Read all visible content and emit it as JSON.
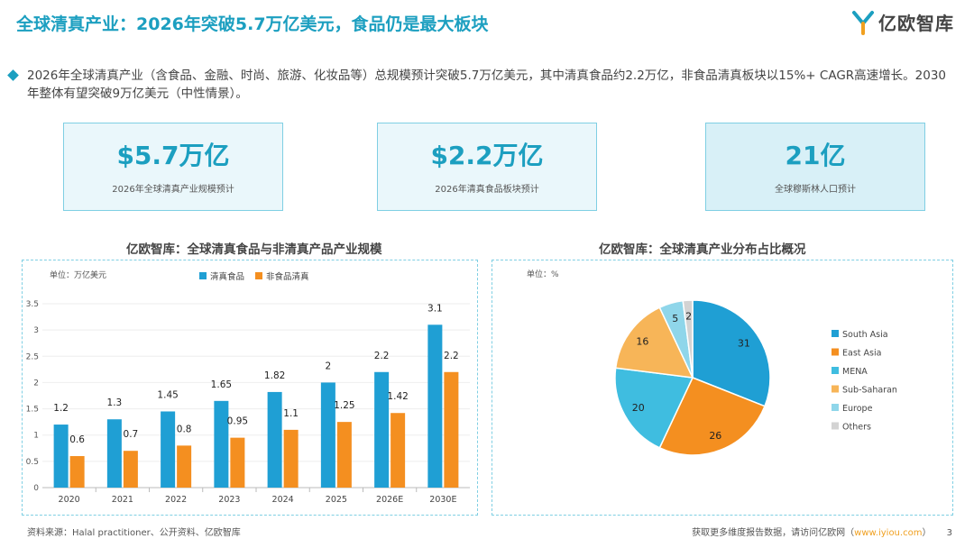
{
  "header": {
    "title": "全球清真产业：2026年突破5.7万亿美元，食品仍是最大板块",
    "logo_text": "亿欧智库"
  },
  "summary_text": "2026年全球清真产业（含食品、金融、时尚、旅游、化妆品等）总规模预计突破5.7万亿美元，其中清真食品约2.2万亿，非食品清真板块以15%+ CAGR高速增长。2030年整体有望突破9万亿美元（中性情景）。",
  "kpis": [
    {
      "value": "$5.7万亿",
      "label": "2026年全球清真产业规模预计"
    },
    {
      "value": "$2.2万亿",
      "label": "2026年清真食品板块预计"
    },
    {
      "value": "21亿",
      "label": "全球穆斯林人口预计"
    }
  ],
  "colors": {
    "accent": "#1c9fc0",
    "bar1": "#1f9fd4",
    "bar2": "#f48f20"
  },
  "chart_data": [
    {
      "type": "bar",
      "title": "亿欧智库：全球清真食品与非清真产品产业规模",
      "unit": "单位：万亿美元",
      "categories": [
        "2020",
        "2021",
        "2022",
        "2023",
        "2024",
        "2025",
        "2026E",
        "2030E"
      ],
      "series": [
        {
          "name": "清真食品",
          "color": "#1f9fd4",
          "values": [
            1.2,
            1.3,
            1.45,
            1.65,
            1.82,
            2,
            2.2,
            3.1
          ]
        },
        {
          "name": "非食品清真",
          "color": "#f48f20",
          "values": [
            0.6,
            0.7,
            0.8,
            0.95,
            1.1,
            1.25,
            1.42,
            2.2
          ]
        }
      ],
      "yticks": [
        "0",
        "0.5",
        "1",
        "1.5",
        "2",
        "2.5",
        "3",
        "3.5"
      ],
      "ylim": [
        0,
        3.5
      ],
      "legend": "top"
    },
    {
      "type": "pie",
      "title": "亿欧智库：全球清真产业分布占比概况",
      "unit": "单位：%",
      "slices": [
        {
          "label": "South Asia",
          "value": 31,
          "color": "#1f9fd4"
        },
        {
          "label": "East Asia",
          "value": 26,
          "color": "#f48f20"
        },
        {
          "label": "MENA",
          "value": 20,
          "color": "#3fbde0"
        },
        {
          "label": "Sub-Saharan",
          "value": 16,
          "color": "#f7b558"
        },
        {
          "label": "Europe",
          "value": 5,
          "color": "#8fd6ea"
        },
        {
          "label": "Others",
          "value": 2,
          "color": "#d3d3d3"
        }
      ],
      "legend": "right"
    }
  ],
  "footer": {
    "source": "资料来源：Halal practitioner、公开资料、亿欧智库",
    "cta_prefix": "获取更多维度报告数据，请访问亿欧网（",
    "cta_link": "www.iyiou.com",
    "cta_suffix": "）",
    "page": "3"
  }
}
